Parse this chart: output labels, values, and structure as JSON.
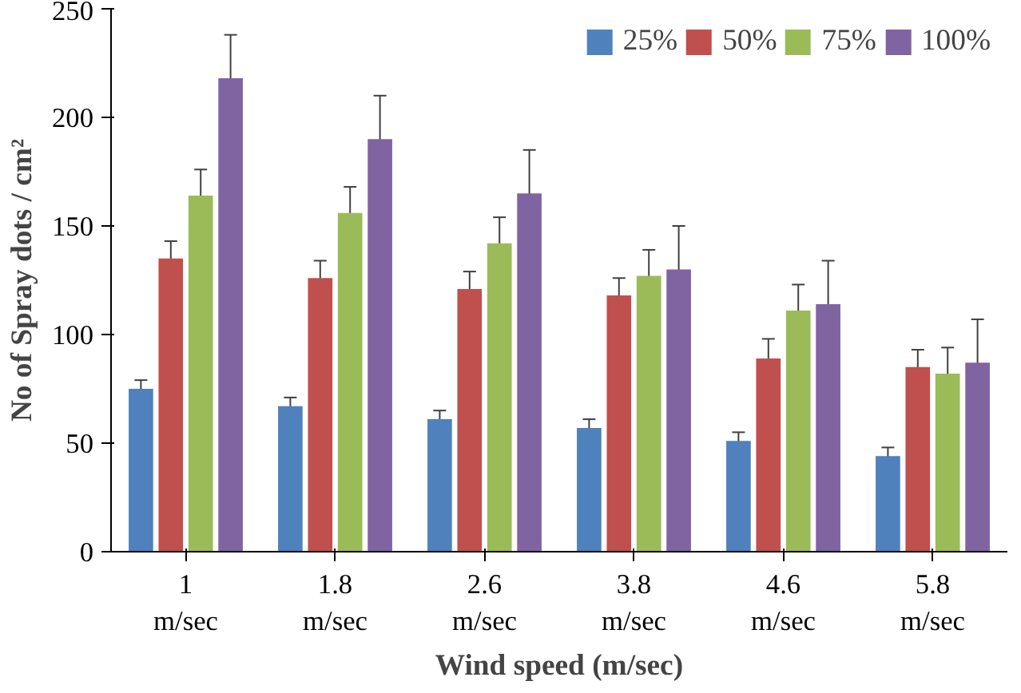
{
  "chart_data": {
    "type": "bar",
    "xlabel": "Wind speed (m/sec)",
    "ylabel": "No of Spray dots / cm²",
    "categories": [
      "1\nm/sec",
      "1.8\nm/sec",
      "2.6\nm/sec",
      "3.8\nm/sec",
      "4.6\nm/sec",
      "5.8\nm/sec"
    ],
    "series": [
      {
        "name": "25%",
        "color": "#4f81bd",
        "values": [
          75,
          67,
          61,
          57,
          51,
          44
        ],
        "errors": [
          4,
          4,
          4,
          4,
          4,
          4
        ]
      },
      {
        "name": "50%",
        "color": "#c0504d",
        "values": [
          135,
          126,
          121,
          118,
          89,
          85
        ],
        "errors": [
          8,
          8,
          8,
          8,
          9,
          8
        ]
      },
      {
        "name": "75%",
        "color": "#9bbb59",
        "values": [
          164,
          156,
          142,
          127,
          111,
          82
        ],
        "errors": [
          12,
          12,
          12,
          12,
          12,
          12
        ]
      },
      {
        "name": "100%",
        "color": "#8064a2",
        "values": [
          218,
          190,
          165,
          130,
          114,
          87
        ],
        "errors": [
          20,
          20,
          20,
          20,
          20,
          20
        ]
      }
    ],
    "ylim": [
      0,
      250
    ],
    "yticks": [
      0,
      50,
      100,
      150,
      200,
      250
    ],
    "grid": false,
    "legend": "top right"
  }
}
